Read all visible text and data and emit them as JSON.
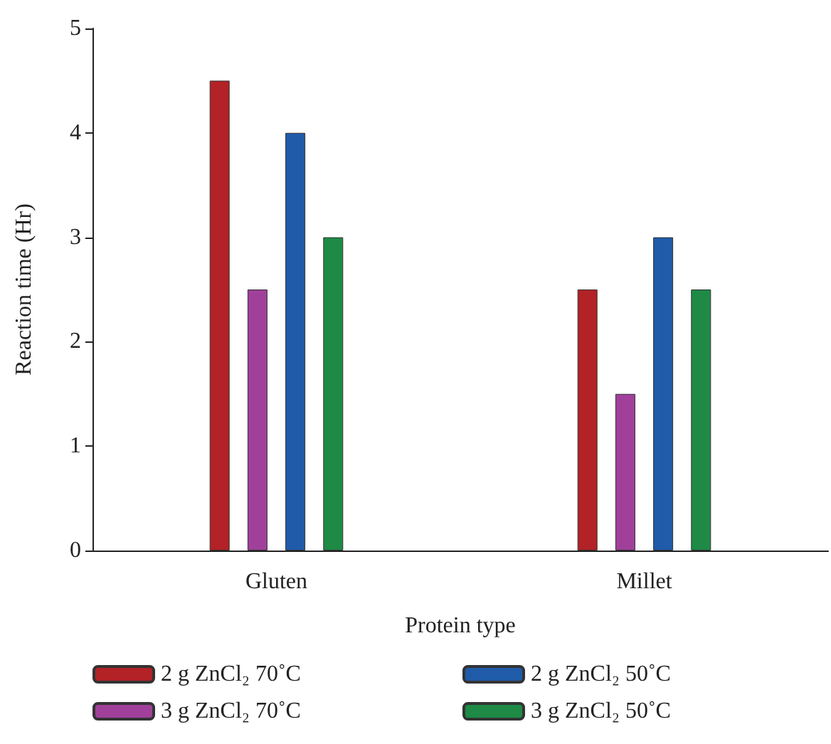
{
  "chart_data": {
    "type": "bar",
    "xlabel": "Protein type",
    "ylabel": "Reaction time (Hr)",
    "categories": [
      "Gluten",
      "Millet"
    ],
    "series": [
      {
        "name": "2 g ZnCl₂ 70˚C",
        "color": "#b22226",
        "values": [
          4.5,
          2.5
        ]
      },
      {
        "name": "3 g ZnCl₂ 70˚C",
        "color": "#a0409a",
        "values": [
          2.5,
          1.5
        ]
      },
      {
        "name": "2 g ZnCl₂ 50˚C",
        "color": "#1f5ba8",
        "values": [
          4,
          3
        ]
      },
      {
        "name": "3 g ZnCl₂ 50˚C",
        "color": "#1e8a46",
        "values": [
          3,
          2.5
        ]
      }
    ],
    "ylim": [
      0,
      5
    ],
    "yticks": [
      0,
      1,
      2,
      3,
      4,
      5
    ],
    "grid": false,
    "legend": "bottom"
  }
}
